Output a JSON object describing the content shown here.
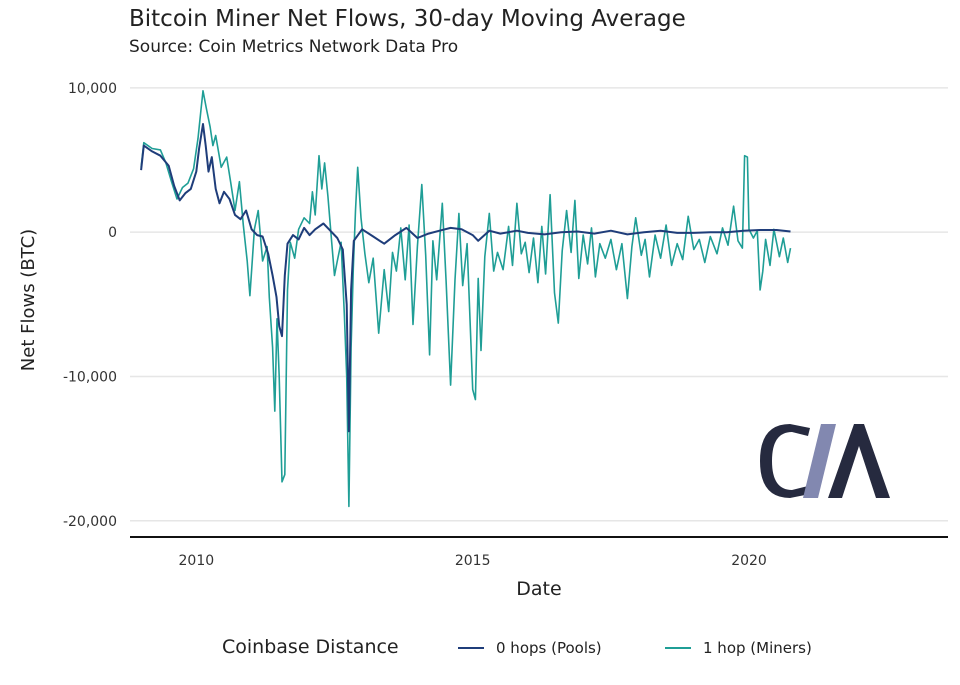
{
  "chart_data": {
    "type": "line",
    "title": "Bitcoin Miner Net Flows, 30-day Moving Average",
    "subtitle": "Source: Coin Metrics Network Data Pro",
    "xlabel": "Date",
    "ylabel": "Net Flows (BTC)",
    "xlim": [
      2008.8,
      2023.6
    ],
    "ylim": [
      -20500,
      10200
    ],
    "x_ticks": [
      {
        "value": 2010,
        "label": "2010"
      },
      {
        "value": 2015,
        "label": "2015"
      },
      {
        "value": 2020,
        "label": "2020"
      }
    ],
    "y_ticks": [
      {
        "value": 10000,
        "label": "10,000"
      },
      {
        "value": 0,
        "label": "0"
      },
      {
        "value": -10000,
        "label": "-10,000"
      },
      {
        "value": -20000,
        "label": "-20,000"
      }
    ],
    "grid": "horizontal",
    "legend": {
      "title": "Coinbase Distance",
      "position": "bottom"
    },
    "series": [
      {
        "name": "0 hops (Pools)",
        "color": "#1f3d7a",
        "points": [
          [
            2009.0,
            4300
          ],
          [
            2009.05,
            6000
          ],
          [
            2009.2,
            5600
          ],
          [
            2009.35,
            5300
          ],
          [
            2009.5,
            4600
          ],
          [
            2009.6,
            3200
          ],
          [
            2009.7,
            2200
          ],
          [
            2009.8,
            2700
          ],
          [
            2009.9,
            3000
          ],
          [
            2010.0,
            4200
          ],
          [
            2010.05,
            5800
          ],
          [
            2010.12,
            7500
          ],
          [
            2010.17,
            6000
          ],
          [
            2010.22,
            4200
          ],
          [
            2010.28,
            5200
          ],
          [
            2010.35,
            3000
          ],
          [
            2010.42,
            2000
          ],
          [
            2010.5,
            2800
          ],
          [
            2010.6,
            2300
          ],
          [
            2010.7,
            1200
          ],
          [
            2010.8,
            900
          ],
          [
            2010.9,
            1500
          ],
          [
            2011.0,
            200
          ],
          [
            2011.1,
            -200
          ],
          [
            2011.2,
            -300
          ],
          [
            2011.3,
            -1500
          ],
          [
            2011.38,
            -3000
          ],
          [
            2011.45,
            -4500
          ],
          [
            2011.5,
            -6500
          ],
          [
            2011.55,
            -7200
          ],
          [
            2011.6,
            -3000
          ],
          [
            2011.65,
            -800
          ],
          [
            2011.75,
            -200
          ],
          [
            2011.85,
            -500
          ],
          [
            2011.95,
            300
          ],
          [
            2012.05,
            -200
          ],
          [
            2012.15,
            200
          ],
          [
            2012.3,
            600
          ],
          [
            2012.4,
            200
          ],
          [
            2012.55,
            -400
          ],
          [
            2012.65,
            -1200
          ],
          [
            2012.72,
            -5000
          ],
          [
            2012.76,
            -13800
          ],
          [
            2012.8,
            -4000
          ],
          [
            2012.85,
            -600
          ],
          [
            2013.0,
            200
          ],
          [
            2013.2,
            -300
          ],
          [
            2013.4,
            -800
          ],
          [
            2013.6,
            -200
          ],
          [
            2013.8,
            300
          ],
          [
            2014.0,
            -400
          ],
          [
            2014.2,
            -100
          ],
          [
            2014.4,
            100
          ],
          [
            2014.6,
            300
          ],
          [
            2014.8,
            200
          ],
          [
            2015.0,
            -200
          ],
          [
            2015.1,
            -600
          ],
          [
            2015.3,
            100
          ],
          [
            2015.5,
            -100
          ],
          [
            2015.8,
            100
          ],
          [
            2016.0,
            -50
          ],
          [
            2016.3,
            -150
          ],
          [
            2016.6,
            0
          ],
          [
            2016.9,
            50
          ],
          [
            2017.2,
            -100
          ],
          [
            2017.5,
            100
          ],
          [
            2017.8,
            -150
          ],
          [
            2018.1,
            0
          ],
          [
            2018.4,
            100
          ],
          [
            2018.7,
            -50
          ],
          [
            2019.0,
            -50
          ],
          [
            2019.3,
            0
          ],
          [
            2019.6,
            0
          ],
          [
            2019.9,
            100
          ],
          [
            2020.2,
            150
          ],
          [
            2020.5,
            150
          ],
          [
            2020.75,
            50
          ]
        ]
      },
      {
        "name": "1 hop (Miners)",
        "color": "#1f9e96",
        "points": [
          [
            2009.0,
            4500
          ],
          [
            2009.05,
            6200
          ],
          [
            2009.2,
            5800
          ],
          [
            2009.35,
            5700
          ],
          [
            2009.45,
            4800
          ],
          [
            2009.55,
            3500
          ],
          [
            2009.65,
            2300
          ],
          [
            2009.75,
            3100
          ],
          [
            2009.85,
            3400
          ],
          [
            2009.95,
            4400
          ],
          [
            2010.03,
            6500
          ],
          [
            2010.08,
            8300
          ],
          [
            2010.12,
            9800
          ],
          [
            2010.18,
            8600
          ],
          [
            2010.25,
            7300
          ],
          [
            2010.3,
            6000
          ],
          [
            2010.35,
            6700
          ],
          [
            2010.45,
            4500
          ],
          [
            2010.55,
            5200
          ],
          [
            2010.62,
            3500
          ],
          [
            2010.7,
            1500
          ],
          [
            2010.78,
            3500
          ],
          [
            2010.85,
            500
          ],
          [
            2010.92,
            -2000
          ],
          [
            2010.97,
            -4400
          ],
          [
            2011.05,
            200
          ],
          [
            2011.12,
            1500
          ],
          [
            2011.2,
            -2000
          ],
          [
            2011.28,
            -1000
          ],
          [
            2011.32,
            -4500
          ],
          [
            2011.38,
            -8000
          ],
          [
            2011.42,
            -12400
          ],
          [
            2011.46,
            -6000
          ],
          [
            2011.5,
            -10000
          ],
          [
            2011.55,
            -17300
          ],
          [
            2011.6,
            -16800
          ],
          [
            2011.65,
            -4000
          ],
          [
            2011.7,
            -700
          ],
          [
            2011.78,
            -1800
          ],
          [
            2011.85,
            200
          ],
          [
            2011.95,
            1000
          ],
          [
            2012.05,
            600
          ],
          [
            2012.1,
            2800
          ],
          [
            2012.15,
            1200
          ],
          [
            2012.22,
            5300
          ],
          [
            2012.27,
            3000
          ],
          [
            2012.32,
            4800
          ],
          [
            2012.38,
            2500
          ],
          [
            2012.45,
            -700
          ],
          [
            2012.5,
            -3000
          ],
          [
            2012.55,
            -2000
          ],
          [
            2012.62,
            -700
          ],
          [
            2012.68,
            -5800
          ],
          [
            2012.72,
            -10000
          ],
          [
            2012.76,
            -19000
          ],
          [
            2012.8,
            -8000
          ],
          [
            2012.84,
            -2500
          ],
          [
            2012.88,
            1500
          ],
          [
            2012.92,
            4500
          ],
          [
            2012.98,
            1000
          ],
          [
            2013.05,
            -1500
          ],
          [
            2013.12,
            -3500
          ],
          [
            2013.2,
            -1800
          ],
          [
            2013.3,
            -7000
          ],
          [
            2013.4,
            -2600
          ],
          [
            2013.48,
            -5500
          ],
          [
            2013.55,
            -1400
          ],
          [
            2013.62,
            -2700
          ],
          [
            2013.7,
            300
          ],
          [
            2013.78,
            -3300
          ],
          [
            2013.85,
            500
          ],
          [
            2013.92,
            -6400
          ],
          [
            2014.0,
            -1000
          ],
          [
            2014.08,
            3300
          ],
          [
            2014.15,
            -1600
          ],
          [
            2014.22,
            -8500
          ],
          [
            2014.28,
            -600
          ],
          [
            2014.35,
            -3300
          ],
          [
            2014.45,
            2000
          ],
          [
            2014.52,
            -3400
          ],
          [
            2014.6,
            -10600
          ],
          [
            2014.68,
            -3300
          ],
          [
            2014.75,
            1300
          ],
          [
            2014.82,
            -3700
          ],
          [
            2014.9,
            -800
          ],
          [
            2015.0,
            -10900
          ],
          [
            2015.05,
            -11600
          ],
          [
            2015.1,
            -3200
          ],
          [
            2015.15,
            -8200
          ],
          [
            2015.22,
            -1700
          ],
          [
            2015.3,
            1300
          ],
          [
            2015.38,
            -2700
          ],
          [
            2015.45,
            -1400
          ],
          [
            2015.55,
            -2600
          ],
          [
            2015.65,
            400
          ],
          [
            2015.72,
            -2300
          ],
          [
            2015.8,
            2000
          ],
          [
            2015.88,
            -1500
          ],
          [
            2015.95,
            -700
          ],
          [
            2016.02,
            -2800
          ],
          [
            2016.1,
            -400
          ],
          [
            2016.18,
            -3500
          ],
          [
            2016.25,
            400
          ],
          [
            2016.32,
            -2900
          ],
          [
            2016.4,
            2600
          ],
          [
            2016.48,
            -4200
          ],
          [
            2016.55,
            -6300
          ],
          [
            2016.62,
            -1300
          ],
          [
            2016.7,
            1500
          ],
          [
            2016.78,
            -1400
          ],
          [
            2016.85,
            2200
          ],
          [
            2016.92,
            -3200
          ],
          [
            2017.0,
            -200
          ],
          [
            2017.08,
            -2200
          ],
          [
            2017.15,
            300
          ],
          [
            2017.22,
            -3100
          ],
          [
            2017.3,
            -800
          ],
          [
            2017.4,
            -1800
          ],
          [
            2017.5,
            -500
          ],
          [
            2017.6,
            -2600
          ],
          [
            2017.7,
            -800
          ],
          [
            2017.8,
            -4600
          ],
          [
            2017.88,
            -1000
          ],
          [
            2017.95,
            1000
          ],
          [
            2018.05,
            -1600
          ],
          [
            2018.12,
            -500
          ],
          [
            2018.2,
            -3100
          ],
          [
            2018.3,
            -200
          ],
          [
            2018.4,
            -1800
          ],
          [
            2018.5,
            500
          ],
          [
            2018.6,
            -2300
          ],
          [
            2018.7,
            -800
          ],
          [
            2018.8,
            -1900
          ],
          [
            2018.9,
            1100
          ],
          [
            2019.0,
            -1200
          ],
          [
            2019.1,
            -500
          ],
          [
            2019.2,
            -2100
          ],
          [
            2019.3,
            -300
          ],
          [
            2019.42,
            -1500
          ],
          [
            2019.52,
            300
          ],
          [
            2019.62,
            -900
          ],
          [
            2019.72,
            1800
          ],
          [
            2019.8,
            -600
          ],
          [
            2019.88,
            -1100
          ],
          [
            2019.92,
            5300
          ],
          [
            2019.97,
            5200
          ],
          [
            2020.0,
            200
          ],
          [
            2020.08,
            -400
          ],
          [
            2020.15,
            100
          ],
          [
            2020.2,
            -4000
          ],
          [
            2020.25,
            -2700
          ],
          [
            2020.3,
            -500
          ],
          [
            2020.38,
            -2300
          ],
          [
            2020.45,
            200
          ],
          [
            2020.55,
            -1700
          ],
          [
            2020.62,
            -400
          ],
          [
            2020.7,
            -2100
          ],
          [
            2020.75,
            -1100
          ]
        ]
      }
    ]
  },
  "logo": {
    "text": "C/M",
    "colors": [
      "#262a3f",
      "#8288b0"
    ]
  }
}
